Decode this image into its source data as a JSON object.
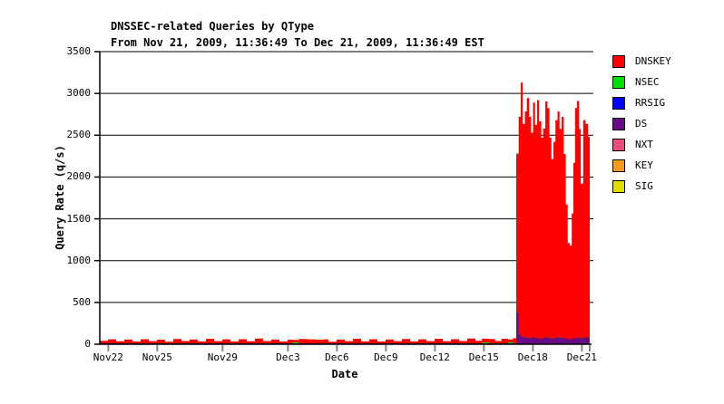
{
  "chart_data": {
    "type": "area",
    "stacked": true,
    "title": "DNSSEC-related Queries by QType",
    "subtitle": "From Nov 21, 2009, 11:36:49 To Dec 21, 2009, 11:36:49 EST",
    "xlabel": "Date",
    "ylabel": "Query Rate (q/s)",
    "ylim": [
      0,
      3500
    ],
    "yticks": [
      0,
      500,
      1000,
      1500,
      2000,
      2500,
      3000,
      3500
    ],
    "x_range_days": [
      0,
      30
    ],
    "x_epoch": "days since Nov 21, 2009 11:36:49 EST",
    "grid": "horizontal",
    "legend_position": "right",
    "xticks": [
      {
        "label": "Nov22",
        "day": 0.52
      },
      {
        "label": "Nov25",
        "day": 3.52
      },
      {
        "label": "Nov29",
        "day": 7.52
      },
      {
        "label": "Dec3",
        "day": 11.52
      },
      {
        "label": "Dec6",
        "day": 14.52
      },
      {
        "label": "Dec9",
        "day": 17.52
      },
      {
        "label": "Dec12",
        "day": 20.52
      },
      {
        "label": "Dec15",
        "day": 23.52
      },
      {
        "label": "Dec18",
        "day": 26.52
      },
      {
        "label": "Dec21",
        "day": 29.52
      }
    ],
    "legend": [
      {
        "label": "DNSKEY",
        "color": "#ff0000"
      },
      {
        "label": "NSEC",
        "color": "#00dd00"
      },
      {
        "label": "RRSIG",
        "color": "#0000ff"
      },
      {
        "label": "DS",
        "color": "#670b86"
      },
      {
        "label": "NXT",
        "color": "#ee4d7f"
      },
      {
        "label": "KEY",
        "color": "#f79a1e"
      },
      {
        "label": "SIG",
        "color": "#dede00"
      }
    ],
    "series_note": "RRSIG, NXT, KEY and SIG stay at ~0 q/s for the whole period. DNSKEY jumps from a ~20-60 q/s daily-cycling baseline to ~1100-3130 q/s starting ~Dec 17; DS briefly spikes to ~380 q/s at the onset then runs ~60-90 q/s.",
    "samples": {
      "columns": [
        "day",
        "DNSKEY",
        "DS",
        "NSEC"
      ],
      "rows": [
        [
          0,
          30,
          10,
          0
        ],
        [
          0.5,
          48,
          10,
          0
        ],
        [
          1,
          25,
          10,
          0
        ],
        [
          1.5,
          45,
          10,
          0
        ],
        [
          2,
          22,
          10,
          0
        ],
        [
          2.5,
          50,
          10,
          0
        ],
        [
          3,
          26,
          10,
          0
        ],
        [
          3.5,
          44,
          10,
          0
        ],
        [
          4,
          20,
          10,
          0
        ],
        [
          4.5,
          52,
          10,
          0
        ],
        [
          5,
          28,
          10,
          0
        ],
        [
          5.5,
          46,
          10,
          0
        ],
        [
          6,
          24,
          10,
          0
        ],
        [
          6.5,
          55,
          10,
          0
        ],
        [
          7,
          27,
          10,
          0
        ],
        [
          7.5,
          48,
          10,
          0
        ],
        [
          8,
          22,
          10,
          0
        ],
        [
          8.5,
          50,
          10,
          0
        ],
        [
          9,
          25,
          10,
          0
        ],
        [
          9.5,
          58,
          10,
          0
        ],
        [
          10,
          28,
          10,
          0
        ],
        [
          10.5,
          46,
          10,
          0
        ],
        [
          11,
          22,
          10,
          0
        ],
        [
          11.5,
          44,
          10,
          0
        ],
        [
          11.8,
          30,
          10,
          12
        ],
        [
          12.2,
          52,
          10,
          0
        ],
        [
          12.7,
          48,
          10,
          0
        ],
        [
          13.2,
          44,
          10,
          0
        ],
        [
          13.7,
          48,
          10,
          0
        ],
        [
          14,
          20,
          10,
          0
        ],
        [
          14.5,
          45,
          10,
          0
        ],
        [
          15,
          26,
          10,
          0
        ],
        [
          15.5,
          55,
          10,
          0
        ],
        [
          16,
          24,
          10,
          0
        ],
        [
          16.5,
          50,
          10,
          0
        ],
        [
          17,
          22,
          10,
          0
        ],
        [
          17.5,
          46,
          10,
          0
        ],
        [
          18,
          27,
          10,
          0
        ],
        [
          18.5,
          52,
          10,
          0
        ],
        [
          19,
          24,
          10,
          0
        ],
        [
          19.5,
          48,
          10,
          0
        ],
        [
          20,
          26,
          10,
          0
        ],
        [
          20.5,
          55,
          10,
          0
        ],
        [
          21,
          25,
          10,
          0
        ],
        [
          21.5,
          50,
          10,
          0
        ],
        [
          22,
          28,
          10,
          0
        ],
        [
          22.5,
          58,
          10,
          0
        ],
        [
          23,
          30,
          10,
          0
        ],
        [
          23.4,
          45,
          10,
          12
        ],
        [
          23.8,
          52,
          10,
          0
        ],
        [
          24.2,
          28,
          10,
          0
        ],
        [
          24.6,
          55,
          10,
          0
        ],
        [
          25,
          35,
          10,
          12
        ],
        [
          25.3,
          60,
          12,
          0
        ],
        [
          25.5,
          1900,
          380,
          0
        ],
        [
          25.65,
          2600,
          120,
          0
        ],
        [
          25.78,
          3040,
          90,
          0
        ],
        [
          25.9,
          2550,
          85,
          0
        ],
        [
          26.03,
          2700,
          85,
          0
        ],
        [
          26.15,
          2870,
          75,
          0
        ],
        [
          26.28,
          2650,
          70,
          0
        ],
        [
          26.4,
          2450,
          80,
          0
        ],
        [
          26.53,
          2800,
          90,
          0
        ],
        [
          26.65,
          2550,
          75,
          0
        ],
        [
          26.78,
          2850,
          70,
          0
        ],
        [
          26.9,
          2600,
          65,
          0
        ],
        [
          27.03,
          2400,
          70,
          0
        ],
        [
          27.15,
          2500,
          80,
          0
        ],
        [
          27.28,
          2820,
          85,
          0
        ],
        [
          27.4,
          2750,
          75,
          0
        ],
        [
          27.53,
          2400,
          70,
          0
        ],
        [
          27.65,
          2150,
          65,
          0
        ],
        [
          27.78,
          2350,
          70,
          0
        ],
        [
          27.9,
          2600,
          80,
          0
        ],
        [
          28.03,
          2700,
          85,
          0
        ],
        [
          28.15,
          2500,
          75,
          0
        ],
        [
          28.28,
          2650,
          70,
          0
        ],
        [
          28.4,
          2200,
          75,
          0
        ],
        [
          28.53,
          1600,
          70,
          0
        ],
        [
          28.65,
          1150,
          60,
          0
        ],
        [
          28.78,
          1120,
          60,
          0
        ],
        [
          28.9,
          1500,
          65,
          0
        ],
        [
          29,
          2100,
          70,
          0
        ],
        [
          29.1,
          2750,
          75,
          0
        ],
        [
          29.22,
          2830,
          80,
          0
        ],
        [
          29.35,
          2500,
          75,
          0
        ],
        [
          29.45,
          1850,
          70,
          0
        ],
        [
          29.6,
          2600,
          80,
          0
        ],
        [
          29.75,
          2550,
          85,
          0
        ],
        [
          29.9,
          2400,
          80,
          0
        ]
      ]
    },
    "plot_style": {
      "grid_color": "#000000",
      "axis_color": "#000000",
      "x_tick_color": "#888888",
      "background": "#ffffff"
    }
  }
}
